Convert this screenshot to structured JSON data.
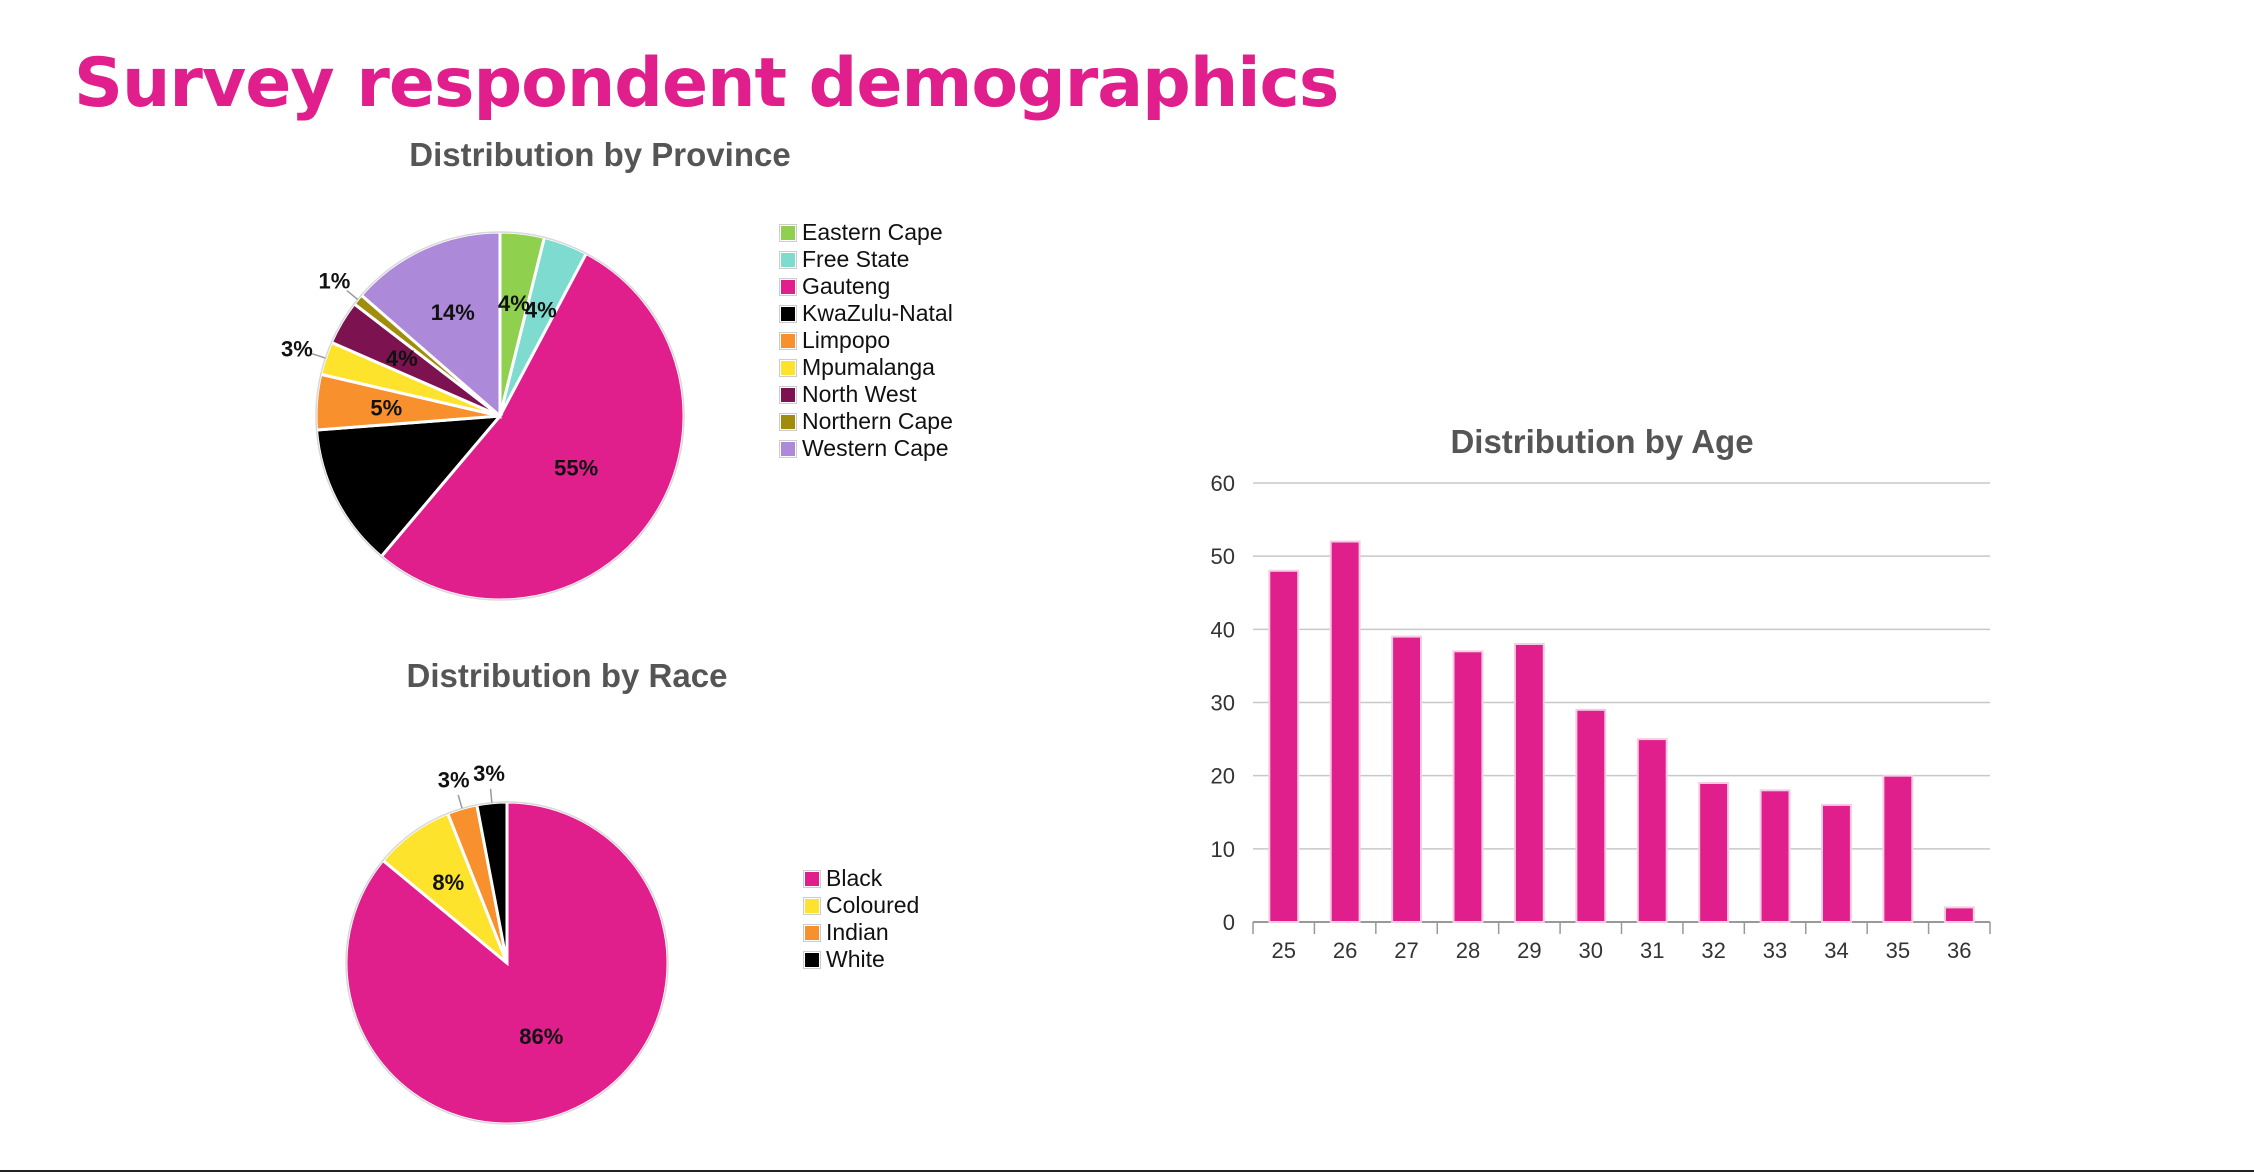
{
  "page": {
    "title": "Survey respondent demographics"
  },
  "chart_data": [
    {
      "id": "province",
      "type": "pie",
      "title": "Distribution by Province",
      "legend_position": "right",
      "slices": [
        {
          "label": "Eastern Cape",
          "value": 4,
          "display": "4%",
          "color": "#8fd14f"
        },
        {
          "label": "Free State",
          "value": 4,
          "display": "4%",
          "color": "#7ddbcf"
        },
        {
          "label": "Gauteng",
          "value": 55,
          "display": "55%",
          "color": "#e01e8c"
        },
        {
          "label": "KwaZulu-Natal",
          "value": 13,
          "display": "",
          "color": "#000000"
        },
        {
          "label": "Limpopo",
          "value": 5,
          "display": "5%",
          "color": "#f7902d"
        },
        {
          "label": "Mpumalanga",
          "value": 3,
          "display": "3%",
          "color": "#fde32c"
        },
        {
          "label": "North West",
          "value": 4,
          "display": "4%",
          "color": "#7c124f"
        },
        {
          "label": "Northern Cape",
          "value": 1,
          "display": "1%",
          "color": "#a08d0d"
        },
        {
          "label": "Western Cape",
          "value": 14,
          "display": "14%",
          "color": "#ad8ad9"
        }
      ]
    },
    {
      "id": "race",
      "type": "pie",
      "title": "Distribution by Race",
      "legend_position": "right",
      "slices": [
        {
          "label": "Black",
          "value": 86,
          "display": "86%",
          "color": "#e01e8c"
        },
        {
          "label": "Coloured",
          "value": 8,
          "display": "8%",
          "color": "#fde32c"
        },
        {
          "label": "Indian",
          "value": 3,
          "display": "3%",
          "color": "#f7902d"
        },
        {
          "label": "White",
          "value": 3,
          "display": "3%",
          "color": "#000000"
        }
      ]
    },
    {
      "id": "age",
      "type": "bar",
      "title": "Distribution by Age",
      "categories": [
        "25",
        "26",
        "27",
        "28",
        "29",
        "30",
        "31",
        "32",
        "33",
        "34",
        "35",
        "36"
      ],
      "values": [
        48,
        52,
        39,
        37,
        38,
        29,
        25,
        19,
        18,
        16,
        20,
        2
      ],
      "ylim": [
        0,
        60
      ],
      "yticks": [
        0,
        10,
        20,
        30,
        40,
        50,
        60
      ],
      "grid": true,
      "color": "#e01e8c"
    }
  ]
}
